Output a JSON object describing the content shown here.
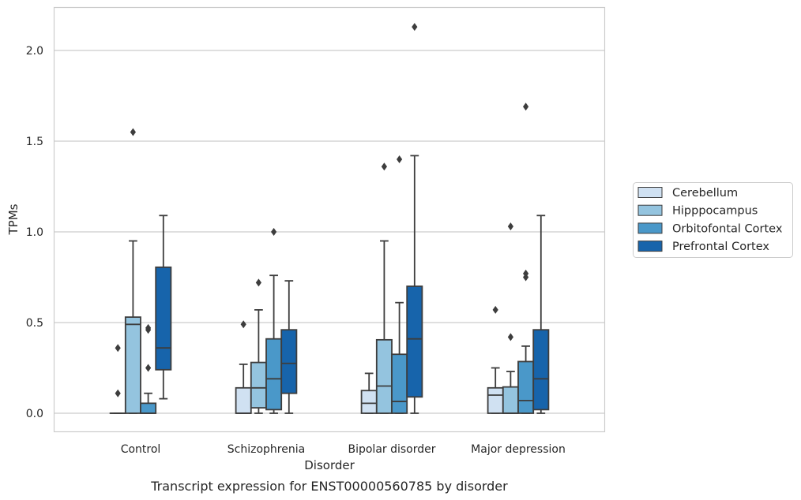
{
  "chart_data": {
    "type": "boxplot",
    "title": "",
    "caption": "Transcript expression for ENST00000560785 by disorder",
    "xlabel": "Disorder",
    "ylabel": "TPMs",
    "ylim": [
      -0.1,
      2.25
    ],
    "yticks": [
      0.0,
      0.5,
      1.0,
      1.5,
      2.0
    ],
    "ytick_labels": [
      "0.0",
      "0.5",
      "1.0",
      "1.5",
      "2.0"
    ],
    "categories": [
      "Control",
      "Schizophrenia",
      "Bipolar disorder",
      "Major depression"
    ],
    "grid": "horizontal",
    "legend_position": "right",
    "series": [
      {
        "name": "Cerebellum",
        "color": "#d0e1f2",
        "boxes": [
          {
            "min": 0.0,
            "q1": 0.0,
            "median": 0.0,
            "q3": 0.0,
            "max": 0.0,
            "outliers": [
              0.36,
              0.11
            ]
          },
          {
            "min": 0.0,
            "q1": 0.0,
            "median": 0.0,
            "q3": 0.14,
            "max": 0.27,
            "outliers": [
              0.49
            ]
          },
          {
            "min": 0.0,
            "q1": 0.0,
            "median": 0.055,
            "q3": 0.125,
            "max": 0.22,
            "outliers": []
          },
          {
            "min": 0.0,
            "q1": 0.0,
            "median": 0.1,
            "q3": 0.14,
            "max": 0.25,
            "outliers": [
              0.57
            ]
          }
        ]
      },
      {
        "name": "Hipppocampus",
        "color": "#94c4df",
        "boxes": [
          {
            "min": 0.0,
            "q1": 0.0,
            "median": 0.49,
            "q3": 0.53,
            "max": 0.95,
            "outliers": [
              1.55
            ]
          },
          {
            "min": 0.0,
            "q1": 0.03,
            "median": 0.14,
            "q3": 0.28,
            "max": 0.57,
            "outliers": [
              0.72
            ]
          },
          {
            "min": 0.0,
            "q1": 0.0,
            "median": 0.15,
            "q3": 0.405,
            "max": 0.95,
            "outliers": [
              1.36
            ]
          },
          {
            "min": 0.0,
            "q1": 0.0,
            "median": 0.0,
            "q3": 0.145,
            "max": 0.23,
            "outliers": [
              1.03,
              0.42
            ]
          }
        ]
      },
      {
        "name": "Orbitofontal Cortex",
        "color": "#4a98c9",
        "boxes": [
          {
            "min": 0.0,
            "q1": 0.0,
            "median": 0.0,
            "q3": 0.055,
            "max": 0.11,
            "outliers": [
              0.47,
              0.46,
              0.25
            ]
          },
          {
            "min": 0.0,
            "q1": 0.02,
            "median": 0.19,
            "q3": 0.41,
            "max": 0.76,
            "outliers": [
              1.0
            ]
          },
          {
            "min": 0.0,
            "q1": 0.0,
            "median": 0.065,
            "q3": 0.325,
            "max": 0.61,
            "outliers": [
              1.4
            ]
          },
          {
            "min": 0.0,
            "q1": 0.0,
            "median": 0.07,
            "q3": 0.285,
            "max": 0.37,
            "outliers": [
              1.69,
              0.77,
              0.75
            ]
          }
        ]
      },
      {
        "name": "Prefrontal Cortex",
        "color": "#1764ab",
        "boxes": [
          {
            "min": 0.08,
            "q1": 0.24,
            "median": 0.36,
            "q3": 0.805,
            "max": 1.09,
            "outliers": []
          },
          {
            "min": 0.0,
            "q1": 0.11,
            "median": 0.275,
            "q3": 0.46,
            "max": 0.73,
            "outliers": []
          },
          {
            "min": 0.0,
            "q1": 0.09,
            "median": 0.41,
            "q3": 0.7,
            "max": 1.42,
            "outliers": [
              2.13
            ]
          },
          {
            "min": 0.0,
            "q1": 0.02,
            "median": 0.19,
            "q3": 0.46,
            "max": 1.09,
            "outliers": []
          }
        ]
      }
    ]
  }
}
